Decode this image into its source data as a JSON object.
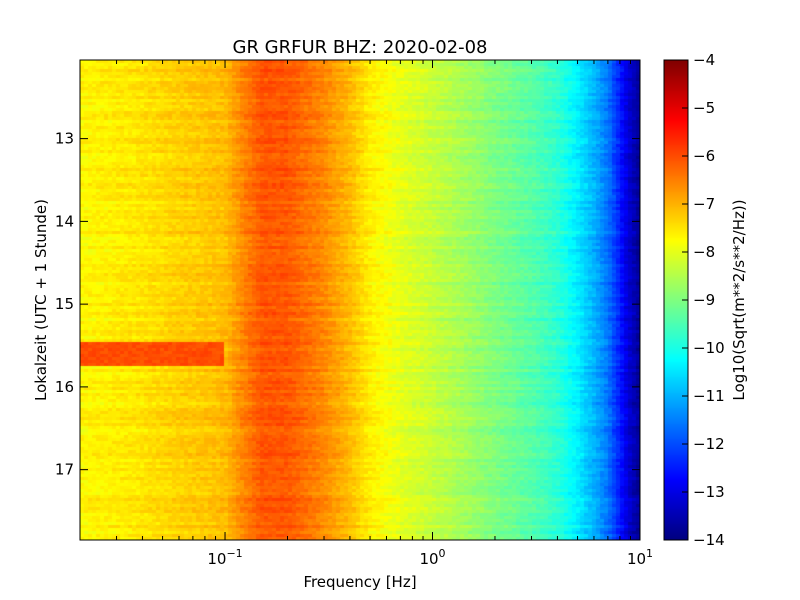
{
  "chart_data": {
    "type": "heatmap",
    "title": "GR GRFUR BHZ: 2020-02-08",
    "xlabel": "Frequency [Hz]",
    "ylabel": "Lokalzeit (UTC + 1 Stunde)",
    "x_scale": "log",
    "xlim": [
      0.02,
      10
    ],
    "x_ticks": [
      {
        "value": 0.1,
        "base": "10",
        "exp": "−1"
      },
      {
        "value": 1,
        "base": "10",
        "exp": "0"
      },
      {
        "value": 10,
        "base": "10",
        "exp": "1"
      }
    ],
    "ylim": [
      12.05,
      17.85
    ],
    "y_inverted": true,
    "y_ticks": [
      "13",
      "14",
      "15",
      "16",
      "17"
    ],
    "colormap": "jet",
    "colorbar": {
      "label": "Log10(Sqrt(m**2/s**2/Hz))",
      "range": [
        -14,
        -4
      ],
      "ticks": [
        "−4",
        "−5",
        "−6",
        "−7",
        "−8",
        "−9",
        "−10",
        "−11",
        "−12",
        "−13",
        "−14"
      ]
    },
    "profile": {
      "freq": [
        0.02,
        0.04,
        0.06,
        0.08,
        0.1,
        0.12,
        0.15,
        0.2,
        0.3,
        0.4,
        0.5,
        0.7,
        1.0,
        1.5,
        2.0,
        3.0,
        4.0,
        5.0,
        6.0,
        7.0,
        8.0,
        9.0,
        10.0
      ],
      "level": [
        -7.7,
        -7.5,
        -7.3,
        -7.2,
        -7.1,
        -6.6,
        -6.1,
        -6.1,
        -6.6,
        -7.1,
        -7.6,
        -8.0,
        -8.3,
        -8.7,
        -9.0,
        -9.4,
        -9.8,
        -10.4,
        -11.0,
        -11.6,
        -12.5,
        -13.3,
        -13.8
      ]
    },
    "event": {
      "start": 15.45,
      "end": 15.75,
      "freq_min": 0.02,
      "freq_max": 0.1,
      "level": -6.0
    }
  }
}
